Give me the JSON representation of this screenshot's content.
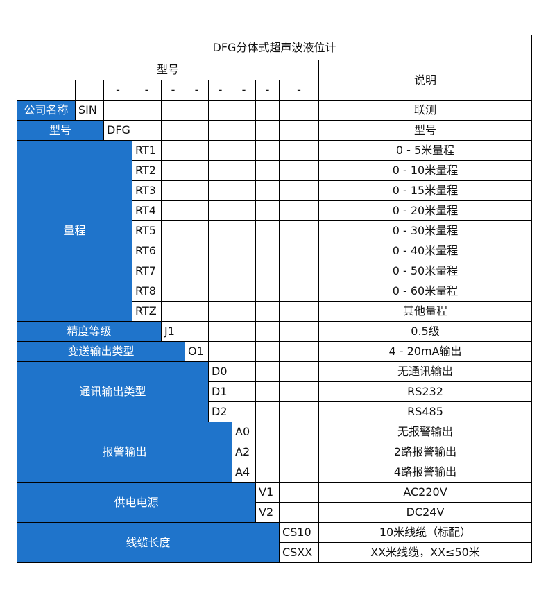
{
  "title": "DFG分体式超声波液位计",
  "header": {
    "model_label": "型号",
    "description_label": "说明",
    "separators": [
      "-",
      "-",
      "-",
      "-",
      "-",
      "-",
      "-",
      "-"
    ]
  },
  "colors": {
    "label_bg": "#1f74cb",
    "label_text": "#ffffff",
    "border": "#000000"
  },
  "sections": [
    {
      "label": "公司名称",
      "options": [
        {
          "code": "SIN",
          "desc": "联测"
        }
      ]
    },
    {
      "label": "型号",
      "options": [
        {
          "code": "DFG",
          "desc": "型号"
        }
      ]
    },
    {
      "label": "量程",
      "options": [
        {
          "code": "RT1",
          "desc": "0 - 5米量程"
        },
        {
          "code": "RT2",
          "desc": "0 - 10米量程"
        },
        {
          "code": "RT3",
          "desc": "0 - 15米量程"
        },
        {
          "code": "RT4",
          "desc": "0 - 20米量程"
        },
        {
          "code": "RT5",
          "desc": "0 - 30米量程"
        },
        {
          "code": "RT6",
          "desc": "0 - 40米量程"
        },
        {
          "code": "RT7",
          "desc": "0 - 50米量程"
        },
        {
          "code": "RT8",
          "desc": "0 - 60米量程"
        },
        {
          "code": "RTZ",
          "desc": "其他量程"
        }
      ]
    },
    {
      "label": "精度等级",
      "options": [
        {
          "code": "J1",
          "desc": "0.5级"
        }
      ]
    },
    {
      "label": "变送输出类型",
      "options": [
        {
          "code": "O1",
          "desc": "4 - 20mA输出"
        }
      ]
    },
    {
      "label": "通讯输出类型",
      "options": [
        {
          "code": "D0",
          "desc": "无通讯输出"
        },
        {
          "code": "D1",
          "desc": "RS232"
        },
        {
          "code": "D2",
          "desc": "RS485"
        }
      ]
    },
    {
      "label": "报警输出",
      "options": [
        {
          "code": "A0",
          "desc": "无报警输出"
        },
        {
          "code": "A2",
          "desc": "2路报警输出"
        },
        {
          "code": "A4",
          "desc": "4路报警输出"
        }
      ]
    },
    {
      "label": "供电电源",
      "options": [
        {
          "code": "V1",
          "desc": "AC220V"
        },
        {
          "code": "V2",
          "desc": "DC24V"
        }
      ]
    },
    {
      "label": "线缆长度",
      "options": [
        {
          "code": "CS10",
          "desc": "10米线缆（标配）"
        },
        {
          "code": "CSXX",
          "desc": "XX米线缆，XX≤50米"
        }
      ]
    }
  ]
}
